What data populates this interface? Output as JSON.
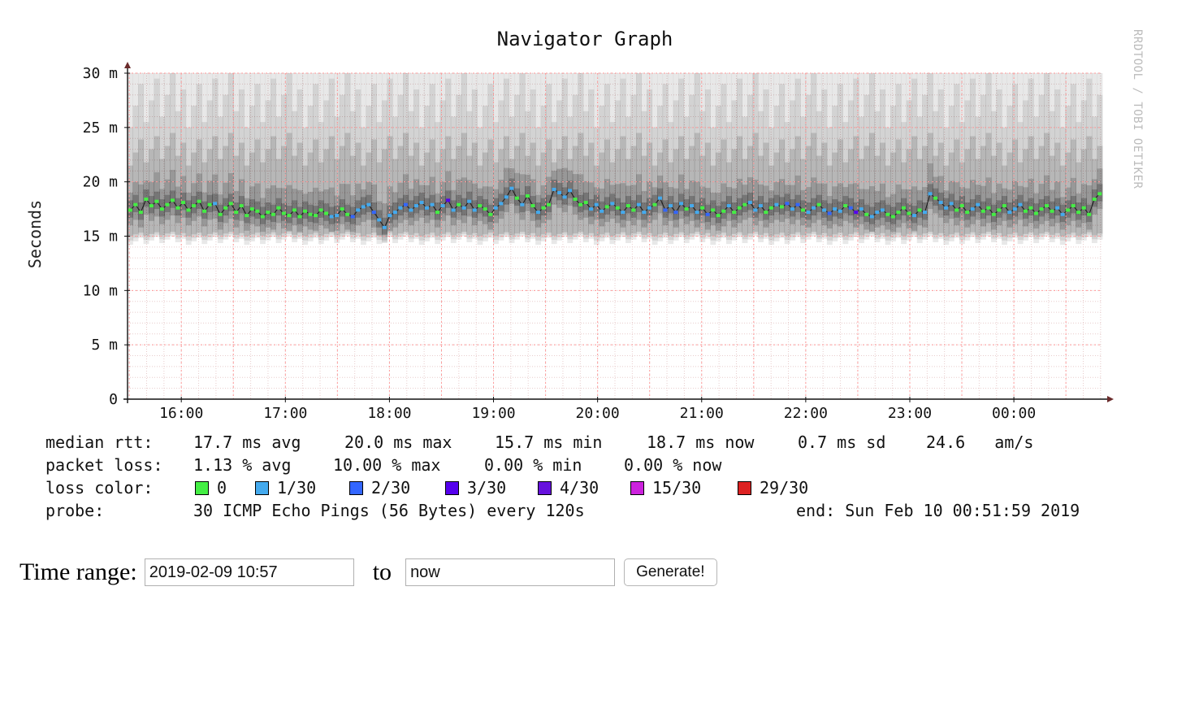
{
  "graph": {
    "title": "Navigator Graph",
    "watermark": "RRDTOOL / TOBI OETIKER"
  },
  "chart_data": {
    "type": "line",
    "ylabel": "Seconds",
    "ylim": [
      0,
      0.03
    ],
    "y_ticks": [
      "0",
      "5 m",
      "10 m",
      "15 m",
      "20 m",
      "25 m",
      "30 m"
    ],
    "y_tick_values": [
      0,
      0.005,
      0.01,
      0.015,
      0.02,
      0.025,
      0.03
    ],
    "x_ticks": [
      "16:00",
      "17:00",
      "18:00",
      "19:00",
      "20:00",
      "21:00",
      "22:00",
      "23:00",
      "00:00"
    ],
    "grid": true,
    "series": [
      {
        "name": "median rtt",
        "unit": "ms",
        "start": "15:29",
        "end": "00:51",
        "interval_minutes": 2,
        "values": [
          17.4,
          17.9,
          17.2,
          18.4,
          17.8,
          18.2,
          17.5,
          17.9,
          18.3,
          17.6,
          18.1,
          17.4,
          17.8,
          18.2,
          17.3,
          17.9,
          18.0,
          17.0,
          17.6,
          18.0,
          17.2,
          17.8,
          16.9,
          17.5,
          17.3,
          16.8,
          17.2,
          17.0,
          17.6,
          17.1,
          16.9,
          17.4,
          16.8,
          17.3,
          17.0,
          16.9,
          17.4,
          17.1,
          16.8,
          16.9,
          17.5,
          17.0,
          16.8,
          17.4,
          17.7,
          17.9,
          17.2,
          16.5,
          15.8,
          16.9,
          17.2,
          17.6,
          17.9,
          17.4,
          17.8,
          18.1,
          17.6,
          17.9,
          17.2,
          17.8,
          18.3,
          17.4,
          17.9,
          17.6,
          18.2,
          17.4,
          17.8,
          17.5,
          17.0,
          17.6,
          18.0,
          18.6,
          19.4,
          18.5,
          17.9,
          18.7,
          17.8,
          17.2,
          17.6,
          17.9,
          19.3,
          19.0,
          18.6,
          19.2,
          18.4,
          17.9,
          18.1,
          17.5,
          17.9,
          17.3,
          17.7,
          18.0,
          17.6,
          17.2,
          17.8,
          17.4,
          17.9,
          17.2,
          17.6,
          17.9,
          18.5,
          17.4,
          17.8,
          17.2,
          18.0,
          17.5,
          17.8,
          17.2,
          17.6,
          17.0,
          17.4,
          16.9,
          17.3,
          17.8,
          17.2,
          17.6,
          17.9,
          18.1,
          17.4,
          17.8,
          17.2,
          17.6,
          17.9,
          17.7,
          18.0,
          17.5,
          17.9,
          17.4,
          17.2,
          17.6,
          17.9,
          17.4,
          17.1,
          17.5,
          17.3,
          17.8,
          17.6,
          17.2,
          17.5,
          17.0,
          16.8,
          17.2,
          17.4,
          17.0,
          16.8,
          17.2,
          17.6,
          17.1,
          16.9,
          17.4,
          17.2,
          18.9,
          18.5,
          18.1,
          17.6,
          18.0,
          17.4,
          17.8,
          17.2,
          17.5,
          17.9,
          17.3,
          17.6,
          17.0,
          17.4,
          17.8,
          17.2,
          17.5,
          17.9,
          17.3,
          17.6,
          17.1,
          17.5,
          17.8,
          17.3,
          17.6,
          17.0,
          17.4,
          17.8,
          17.2,
          17.6,
          17.0,
          18.4,
          18.9
        ],
        "loss": [
          0,
          0,
          0,
          0,
          0,
          0,
          0,
          0,
          0,
          0,
          0,
          0,
          0,
          0,
          0,
          0,
          1,
          0,
          0,
          0,
          0,
          0,
          0,
          0,
          0,
          0,
          0,
          0,
          0,
          0,
          0,
          0,
          0,
          0,
          0,
          0,
          0,
          0,
          1,
          1,
          0,
          0,
          2,
          1,
          1,
          1,
          2,
          1,
          1,
          1,
          1,
          1,
          2,
          1,
          1,
          1,
          1,
          1,
          0,
          1,
          3,
          1,
          0,
          1,
          1,
          1,
          0,
          0,
          0,
          1,
          1,
          1,
          1,
          0,
          1,
          0,
          0,
          1,
          0,
          0,
          1,
          1,
          1,
          1,
          0,
          0,
          0,
          1,
          1,
          1,
          0,
          1,
          0,
          1,
          0,
          0,
          1,
          1,
          1,
          0,
          1,
          2,
          1,
          2,
          1,
          0,
          1,
          1,
          0,
          2,
          0,
          0,
          0,
          1,
          0,
          0,
          0,
          1,
          1,
          1,
          0,
          0,
          1,
          0,
          2,
          1,
          2,
          0,
          1,
          1,
          0,
          1,
          2,
          1,
          1,
          0,
          2,
          3,
          1,
          0,
          1,
          1,
          1,
          0,
          0,
          0,
          0,
          0,
          1,
          0,
          1,
          1,
          0,
          1,
          1,
          1,
          0,
          0,
          0,
          1,
          1,
          0,
          0,
          0,
          0,
          0,
          1,
          1,
          1,
          0,
          0,
          0,
          0,
          0,
          0,
          1,
          1,
          0,
          0,
          0,
          0,
          0,
          0,
          0,
          0,
          0,
          0,
          0,
          0,
          0,
          0
        ]
      }
    ],
    "loss_color_map": {
      "0": "#44ee44",
      "1": "#44aaee",
      "2": "#3366ff",
      "3": "#5500ee",
      "4": "#6611dd",
      "15": "#cc22dd",
      "29": "#dd2222"
    },
    "colors": {
      "axis": "#111111",
      "arrow": "#6b2b2b",
      "grid_major": "#ff9999",
      "grid_minor": "#e8cccc",
      "smoke": "#000000"
    }
  },
  "legend": {
    "median": {
      "label": "median rtt:",
      "avg": "17.7 ms avg",
      "max": "20.0 ms max",
      "min": "15.7 ms min",
      "now": "18.7 ms now",
      "sd": "0.7 ms sd",
      "ams": "24.6   am/s"
    },
    "loss": {
      "label": "packet loss:",
      "avg": "1.13 % avg",
      "max": "10.00 % max",
      "min": "0.00 % min",
      "now": "0.00 % now"
    },
    "loss_color": {
      "label": "loss color:",
      "items": [
        {
          "text": "0",
          "color": "#44ee44"
        },
        {
          "text": "1/30",
          "color": "#44aaee"
        },
        {
          "text": "2/30",
          "color": "#3366ff"
        },
        {
          "text": "3/30",
          "color": "#5500ee"
        },
        {
          "text": "4/30",
          "color": "#6611dd"
        },
        {
          "text": "15/30",
          "color": "#cc22dd"
        },
        {
          "text": "29/30",
          "color": "#dd2222"
        }
      ]
    },
    "probe": {
      "label": "probe:",
      "text": "30 ICMP Echo Pings (56 Bytes) every 120s",
      "end": "end: Sun Feb 10 00:51:59 2019"
    }
  },
  "form": {
    "time_range_label": "Time range:",
    "start_value": "2019-02-09 10:57",
    "to_label": "to",
    "end_value": "now",
    "generate_label": "Generate!"
  }
}
